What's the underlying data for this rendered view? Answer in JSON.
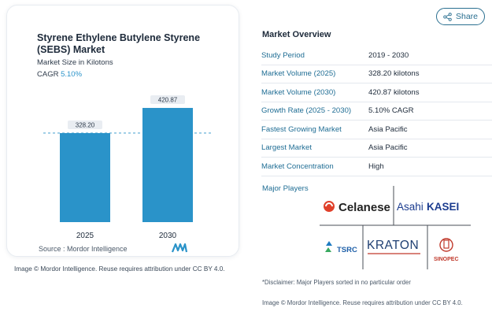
{
  "card": {
    "title": "Styrene Ethylene Butylene Styrene (SEBS) Market",
    "subtitle": "Market Size in Kilotons",
    "cagr_label": "CAGR",
    "cagr_value": "5.10%",
    "source": "Source :  Mordor Intelligence",
    "credit": "Image © Mordor Intelligence. Reuse requires attribution under CC BY 4.0."
  },
  "chart_data": {
    "type": "bar",
    "categories": [
      "2025",
      "2030"
    ],
    "values": [
      328.2,
      420.87
    ],
    "data_labels": [
      "328.20",
      "420.87"
    ],
    "ylim": [
      0,
      450
    ],
    "grid": false,
    "reference_line": "dashed line at 2025 value",
    "colors": {
      "bar": "#2a93c9",
      "reference_line": "#2a93c9",
      "label_bg": "#e9edf2"
    }
  },
  "share": {
    "label": "Share",
    "icon": "share-icon"
  },
  "overview": {
    "title": "Market Overview",
    "rows": [
      {
        "key": "Study Period",
        "value": "2019 - 2030"
      },
      {
        "key": "Market Volume (2025)",
        "value": "328.20 kilotons"
      },
      {
        "key": "Market Volume (2030)",
        "value": "420.87 kilotons"
      },
      {
        "key": "Growth Rate (2025 - 2030)",
        "value": "5.10% CAGR"
      },
      {
        "key": "Fastest Growing Market",
        "value": "Asia Pacific"
      },
      {
        "key": "Largest Market",
        "value": "Asia Pacific"
      },
      {
        "key": "Market Concentration",
        "value": "High"
      }
    ]
  },
  "players": {
    "title": "Major Players",
    "logos": [
      "Celanese",
      "AsahiKASEI",
      "TSRC",
      "KRATON",
      "SINOPEC"
    ],
    "celanese": "Celanese",
    "asahi_a": "Asahi",
    "asahi_b": "KASEI",
    "tsrc": "TSRC",
    "kraton": "KRATON",
    "sinopec": "SINOPEC"
  },
  "disclaimer": "*Disclaimer: Major Players sorted in no particular order",
  "credit_right": "Image © Mordor Intelligence. Reuse requires attribution under CC BY 4.0."
}
